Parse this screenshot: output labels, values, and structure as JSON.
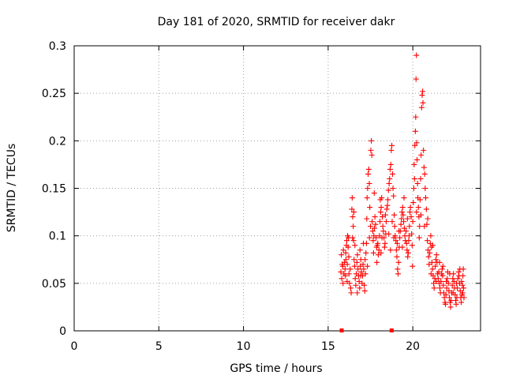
{
  "chart_data": {
    "type": "scatter",
    "title": "Day 181 of 2020, SRMTID for receiver dakr",
    "xlabel": "GPS time / hours",
    "ylabel": "SRMTID / TECUs",
    "xlim": [
      0,
      24
    ],
    "ylim": [
      0,
      0.3
    ],
    "xticks": [
      0,
      5,
      10,
      15,
      20
    ],
    "xtick_labels": [
      "0",
      "5",
      "10",
      "15",
      "20"
    ],
    "yticks": [
      0,
      0.05,
      0.1,
      0.15,
      0.2,
      0.25,
      0.3
    ],
    "ytick_labels": [
      "0",
      "0.05",
      "0.1",
      "0.15",
      "0.2",
      "0.25",
      "0.3"
    ],
    "grid": true,
    "marker": "+",
    "series_color": "#ff0000",
    "zero_markers": [
      15.8,
      18.75
    ],
    "series": [
      {
        "name": "SRMTID",
        "points": [
          [
            15.75,
            0.062
          ],
          [
            15.78,
            0.08
          ],
          [
            15.8,
            0.055
          ],
          [
            15.83,
            0.07
          ],
          [
            15.86,
            0.068
          ],
          [
            15.9,
            0.085
          ],
          [
            15.93,
            0.06
          ],
          [
            15.96,
            0.072
          ],
          [
            16.0,
            0.065
          ],
          [
            16.02,
            0.058
          ],
          [
            16.05,
            0.075
          ],
          [
            16.08,
            0.09
          ],
          [
            16.1,
            0.095
          ],
          [
            16.13,
            0.07
          ],
          [
            16.15,
            0.1
          ],
          [
            16.18,
            0.088
          ],
          [
            16.2,
            0.098
          ],
          [
            16.23,
            0.06
          ],
          [
            16.26,
            0.05
          ],
          [
            16.3,
            0.065
          ],
          [
            16.33,
            0.045
          ],
          [
            16.36,
            0.04
          ],
          [
            16.4,
            0.128
          ],
          [
            16.42,
            0.14
          ],
          [
            16.45,
            0.12
          ],
          [
            16.48,
            0.11
          ],
          [
            16.5,
            0.095
          ],
          [
            16.53,
            0.075
          ],
          [
            16.56,
            0.068
          ],
          [
            16.6,
            0.055
          ],
          [
            16.63,
            0.048
          ],
          [
            16.66,
            0.06
          ],
          [
            16.7,
            0.072
          ],
          [
            16.73,
            0.08
          ],
          [
            16.76,
            0.065
          ],
          [
            16.8,
            0.058
          ],
          [
            16.83,
            0.052
          ],
          [
            16.86,
            0.045
          ],
          [
            16.9,
            0.068
          ],
          [
            16.93,
            0.075
          ],
          [
            16.96,
            0.062
          ],
          [
            17.0,
            0.05
          ],
          [
            17.03,
            0.058
          ],
          [
            17.06,
            0.07
          ],
          [
            17.1,
            0.065
          ],
          [
            17.13,
            0.048
          ],
          [
            17.16,
            0.042
          ],
          [
            17.2,
            0.06
          ],
          [
            17.23,
            0.082
          ],
          [
            17.26,
            0.092
          ],
          [
            17.3,
            0.14
          ],
          [
            17.33,
            0.15
          ],
          [
            17.36,
            0.165
          ],
          [
            17.4,
            0.17
          ],
          [
            17.43,
            0.155
          ],
          [
            17.46,
            0.13
          ],
          [
            17.5,
            0.11
          ],
          [
            17.52,
            0.19
          ],
          [
            17.55,
            0.2
          ],
          [
            17.58,
            0.185
          ],
          [
            17.6,
            0.115
          ],
          [
            17.63,
            0.105
          ],
          [
            17.66,
            0.095
          ],
          [
            17.7,
            0.1
          ],
          [
            17.73,
            0.108
          ],
          [
            17.76,
            0.12
          ],
          [
            17.8,
            0.112
          ],
          [
            17.83,
            0.098
          ],
          [
            17.86,
            0.088
          ],
          [
            17.9,
            0.09
          ],
          [
            17.93,
            0.092
          ],
          [
            17.96,
            0.08
          ],
          [
            18.0,
            0.085
          ],
          [
            18.03,
            0.1
          ],
          [
            18.06,
            0.115
          ],
          [
            18.1,
            0.125
          ],
          [
            18.13,
            0.13
          ],
          [
            18.16,
            0.14
          ],
          [
            18.2,
            0.12
          ],
          [
            18.23,
            0.11
          ],
          [
            18.26,
            0.105
          ],
          [
            18.3,
            0.098
          ],
          [
            18.33,
            0.088
          ],
          [
            18.36,
            0.092
          ],
          [
            18.4,
            0.102
          ],
          [
            18.43,
            0.115
          ],
          [
            18.46,
            0.128
          ],
          [
            18.5,
            0.132
          ],
          [
            18.53,
            0.138
          ],
          [
            18.56,
            0.148
          ],
          [
            18.6,
            0.155
          ],
          [
            18.63,
            0.16
          ],
          [
            18.66,
            0.17
          ],
          [
            18.7,
            0.175
          ],
          [
            18.73,
            0.19
          ],
          [
            18.76,
            0.195
          ],
          [
            18.8,
            0.165
          ],
          [
            18.83,
            0.15
          ],
          [
            18.86,
            0.142
          ],
          [
            18.9,
            0.122
          ],
          [
            18.93,
            0.11
          ],
          [
            18.96,
            0.1
          ],
          [
            19.0,
            0.095
          ],
          [
            19.03,
            0.085
          ],
          [
            19.06,
            0.078
          ],
          [
            19.1,
            0.065
          ],
          [
            19.13,
            0.06
          ],
          [
            19.16,
            0.072
          ],
          [
            19.2,
            0.088
          ],
          [
            19.23,
            0.098
          ],
          [
            19.26,
            0.105
          ],
          [
            19.3,
            0.112
          ],
          [
            19.33,
            0.118
          ],
          [
            19.36,
            0.125
          ],
          [
            19.4,
            0.13
          ],
          [
            19.43,
            0.122
          ],
          [
            19.46,
            0.115
          ],
          [
            19.5,
            0.108
          ],
          [
            19.53,
            0.1
          ],
          [
            19.56,
            0.095
          ],
          [
            19.6,
            0.105
          ],
          [
            19.63,
            0.092
          ],
          [
            19.66,
            0.085
          ],
          [
            19.7,
            0.078
          ],
          [
            19.73,
            0.082
          ],
          [
            19.76,
            0.095
          ],
          [
            19.8,
            0.11
          ],
          [
            19.83,
            0.125
          ],
          [
            19.86,
            0.13
          ],
          [
            19.9,
            0.12
          ],
          [
            19.93,
            0.102
          ],
          [
            19.96,
            0.09
          ],
          [
            20.0,
            0.115
          ],
          [
            20.03,
            0.135
          ],
          [
            20.06,
            0.15
          ],
          [
            20.08,
            0.175
          ],
          [
            20.1,
            0.16
          ],
          [
            20.12,
            0.195
          ],
          [
            20.15,
            0.21
          ],
          [
            20.17,
            0.225
          ],
          [
            20.19,
            0.265
          ],
          [
            20.21,
            0.29
          ],
          [
            20.23,
            0.198
          ],
          [
            20.25,
            0.18
          ],
          [
            20.28,
            0.155
          ],
          [
            20.3,
            0.14
          ],
          [
            20.33,
            0.13
          ],
          [
            20.36,
            0.12
          ],
          [
            20.4,
            0.11
          ],
          [
            20.43,
            0.138
          ],
          [
            20.46,
            0.16
          ],
          [
            20.49,
            0.185
          ],
          [
            20.52,
            0.235
          ],
          [
            20.55,
            0.248
          ],
          [
            20.58,
            0.252
          ],
          [
            20.6,
            0.24
          ],
          [
            20.63,
            0.19
          ],
          [
            20.66,
            0.172
          ],
          [
            20.7,
            0.165
          ],
          [
            20.73,
            0.15
          ],
          [
            20.76,
            0.14
          ],
          [
            20.8,
            0.128
          ],
          [
            20.83,
            0.112
          ],
          [
            20.86,
            0.095
          ],
          [
            20.9,
            0.085
          ],
          [
            20.93,
            0.078
          ],
          [
            20.96,
            0.07
          ],
          [
            21.0,
            0.082
          ],
          [
            21.03,
            0.092
          ],
          [
            21.06,
            0.1
          ],
          [
            21.1,
            0.088
          ],
          [
            21.13,
            0.072
          ],
          [
            21.16,
            0.065
          ],
          [
            21.2,
            0.058
          ],
          [
            21.23,
            0.05
          ],
          [
            21.26,
            0.045
          ],
          [
            21.3,
            0.055
          ],
          [
            21.33,
            0.068
          ],
          [
            21.36,
            0.075
          ],
          [
            21.4,
            0.08
          ],
          [
            21.43,
            0.072
          ],
          [
            21.46,
            0.06
          ],
          [
            21.5,
            0.055
          ],
          [
            21.53,
            0.062
          ],
          [
            21.56,
            0.05
          ],
          [
            21.6,
            0.045
          ],
          [
            21.63,
            0.04
          ],
          [
            21.66,
            0.052
          ],
          [
            21.7,
            0.06
          ],
          [
            21.73,
            0.065
          ],
          [
            21.76,
            0.058
          ],
          [
            21.8,
            0.048
          ],
          [
            21.83,
            0.04
          ],
          [
            21.86,
            0.035
          ],
          [
            21.9,
            0.03
          ],
          [
            21.93,
            0.028
          ],
          [
            21.96,
            0.038
          ],
          [
            22.0,
            0.045
          ],
          [
            22.03,
            0.055
          ],
          [
            22.06,
            0.062
          ],
          [
            22.1,
            0.05
          ],
          [
            22.13,
            0.042
          ],
          [
            22.16,
            0.035
          ],
          [
            22.2,
            0.03
          ],
          [
            22.23,
            0.025
          ],
          [
            22.26,
            0.032
          ],
          [
            22.3,
            0.04
          ],
          [
            22.33,
            0.048
          ],
          [
            22.36,
            0.055
          ],
          [
            22.4,
            0.06
          ],
          [
            22.43,
            0.052
          ],
          [
            22.46,
            0.045
          ],
          [
            22.5,
            0.038
          ],
          [
            22.53,
            0.032
          ],
          [
            22.56,
            0.028
          ],
          [
            22.6,
            0.035
          ],
          [
            22.63,
            0.045
          ],
          [
            22.66,
            0.055
          ],
          [
            22.7,
            0.062
          ],
          [
            22.73,
            0.058
          ],
          [
            22.76,
            0.05
          ],
          [
            22.8,
            0.042
          ],
          [
            22.83,
            0.035
          ],
          [
            22.86,
            0.03
          ],
          [
            22.9,
            0.038
          ],
          [
            22.93,
            0.048
          ],
          [
            22.96,
            0.058
          ],
          [
            22.98,
            0.065
          ],
          [
            23.0,
            0.045
          ],
          [
            23.02,
            0.035
          ],
          [
            15.88,
            0.05
          ],
          [
            16.04,
            0.082
          ],
          [
            16.22,
            0.078
          ],
          [
            16.44,
            0.098
          ],
          [
            16.58,
            0.09
          ],
          [
            16.72,
            0.04
          ],
          [
            16.88,
            0.085
          ],
          [
            17.08,
            0.092
          ],
          [
            17.18,
            0.075
          ],
          [
            17.28,
            0.118
          ],
          [
            17.44,
            0.098
          ],
          [
            17.68,
            0.082
          ],
          [
            17.88,
            0.072
          ],
          [
            18.08,
            0.138
          ],
          [
            18.18,
            0.098
          ],
          [
            18.38,
            0.122
          ],
          [
            18.58,
            0.102
          ],
          [
            18.68,
            0.085
          ],
          [
            18.78,
            0.115
          ],
          [
            18.88,
            0.098
          ],
          [
            19.08,
            0.092
          ],
          [
            19.18,
            0.105
          ],
          [
            19.38,
            0.088
          ],
          [
            19.48,
            0.14
          ],
          [
            19.68,
            0.118
          ],
          [
            19.78,
            0.1
          ],
          [
            19.98,
            0.068
          ],
          [
            20.22,
            0.125
          ],
          [
            20.38,
            0.098
          ],
          [
            20.48,
            0.122
          ],
          [
            20.68,
            0.11
          ],
          [
            20.88,
            0.118
          ],
          [
            21.08,
            0.06
          ],
          [
            21.18,
            0.09
          ],
          [
            21.38,
            0.052
          ],
          [
            21.58,
            0.072
          ],
          [
            21.78,
            0.068
          ],
          [
            21.98,
            0.052
          ],
          [
            22.18,
            0.06
          ],
          [
            22.38,
            0.04
          ],
          [
            22.58,
            0.05
          ],
          [
            22.78,
            0.065
          ],
          [
            22.88,
            0.052
          ],
          [
            22.95,
            0.04
          ],
          [
            16.12,
            0.052
          ],
          [
            16.52,
            0.125
          ],
          [
            16.92,
            0.058
          ],
          [
            17.32,
            0.068
          ],
          [
            17.72,
            0.145
          ],
          [
            18.12,
            0.082
          ]
        ]
      }
    ]
  }
}
